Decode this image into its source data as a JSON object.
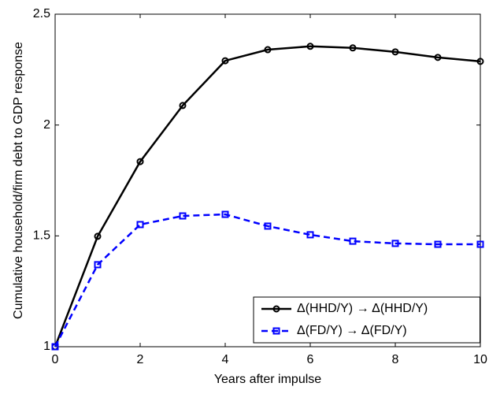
{
  "chart_data": {
    "type": "line",
    "xlabel": "Years after impulse",
    "ylabel": "Cumulative household/firm debt to GDP response",
    "x": [
      0,
      1,
      2,
      3,
      4,
      5,
      6,
      7,
      8,
      9,
      10
    ],
    "series": [
      {
        "name": "Δ(HHD/Y) → Δ(HHD/Y)",
        "color": "#000000",
        "line_style": "solid",
        "marker": "circle",
        "values": [
          1.0,
          1.498,
          1.835,
          2.088,
          2.29,
          2.34,
          2.355,
          2.348,
          2.33,
          2.305,
          2.287
        ]
      },
      {
        "name": "Δ(FD/Y) → Δ(FD/Y)",
        "color": "#0000ff",
        "line_style": "dashed",
        "marker": "square",
        "values": [
          1.0,
          1.37,
          1.551,
          1.59,
          1.597,
          1.544,
          1.505,
          1.476,
          1.466,
          1.462,
          1.462
        ]
      }
    ],
    "xlim": [
      0,
      10
    ],
    "xticks": [
      0,
      2,
      4,
      6,
      8,
      10
    ],
    "ylim": [
      1,
      2.5
    ],
    "yticks": [
      1,
      1.5,
      2,
      2.5
    ],
    "grid": false,
    "legend_position": "lower right"
  }
}
